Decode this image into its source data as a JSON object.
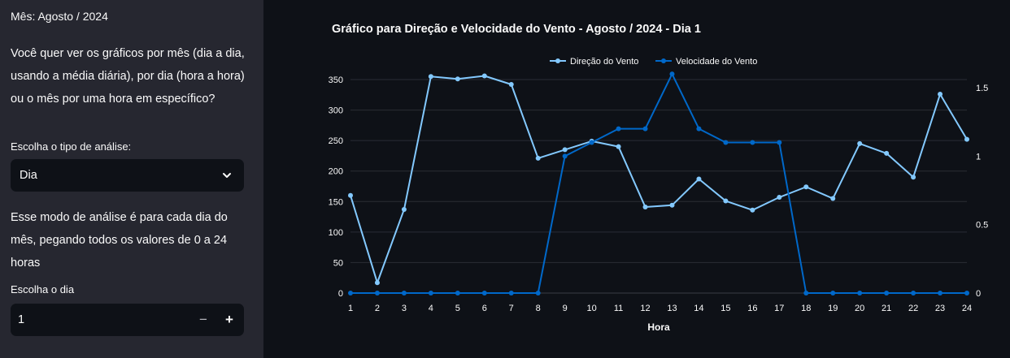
{
  "sidebar": {
    "month_label": "Mês: Agosto / 2024",
    "question": "Você quer ver os gráficos por mês (dia a dia, usando a média diária), por dia (hora a hora) ou o mês por uma hora em específico?",
    "analysis_type_label": "Escolha o tipo de análise:",
    "analysis_type_value": "Dia",
    "analysis_info": "Esse modo de análise é para cada dia do mês, pegando todos os valores de 0 a 24 horas",
    "day_label": "Escolha o dia",
    "day_value": "1",
    "minus_label": "−",
    "plus_label": "+"
  },
  "colors": {
    "sidebar_bg": "#262730",
    "main_bg": "#0e1117",
    "series_direction": "#83c9ff",
    "series_speed": "#0068c9"
  },
  "chart_data": {
    "type": "line",
    "title": "Gráfico para Direção e Velocidade do Vento - Agosto / 2024 - Dia 1",
    "xlabel": "Hora",
    "x": [
      1,
      2,
      3,
      4,
      5,
      6,
      7,
      8,
      9,
      10,
      11,
      12,
      13,
      14,
      15,
      16,
      17,
      18,
      19,
      20,
      21,
      22,
      23,
      24
    ],
    "xlim": [
      1,
      24
    ],
    "y_left_ticks": [
      0,
      50,
      100,
      150,
      200,
      250,
      300,
      350
    ],
    "y_left_lim": [
      0,
      350
    ],
    "y_right_ticks": [
      0,
      0.5,
      1,
      1.5
    ],
    "y_right_lim": [
      0,
      1.6
    ],
    "grid": true,
    "legend_position": "top-center",
    "series": [
      {
        "name": "Direção do Vento",
        "axis": "left",
        "values": [
          160,
          17,
          137,
          355,
          351,
          356,
          342,
          221,
          235,
          249,
          240,
          141,
          144,
          187,
          151,
          136,
          157,
          174,
          155,
          245,
          229,
          190,
          326,
          252
        ]
      },
      {
        "name": "Velocidade do Vento",
        "axis": "right",
        "values": [
          0,
          0,
          0,
          0,
          0,
          0,
          0,
          0,
          1.0,
          1.1,
          1.2,
          1.2,
          1.6,
          1.2,
          1.1,
          1.1,
          1.1,
          0,
          0,
          0,
          0,
          0,
          0,
          0
        ]
      }
    ]
  }
}
